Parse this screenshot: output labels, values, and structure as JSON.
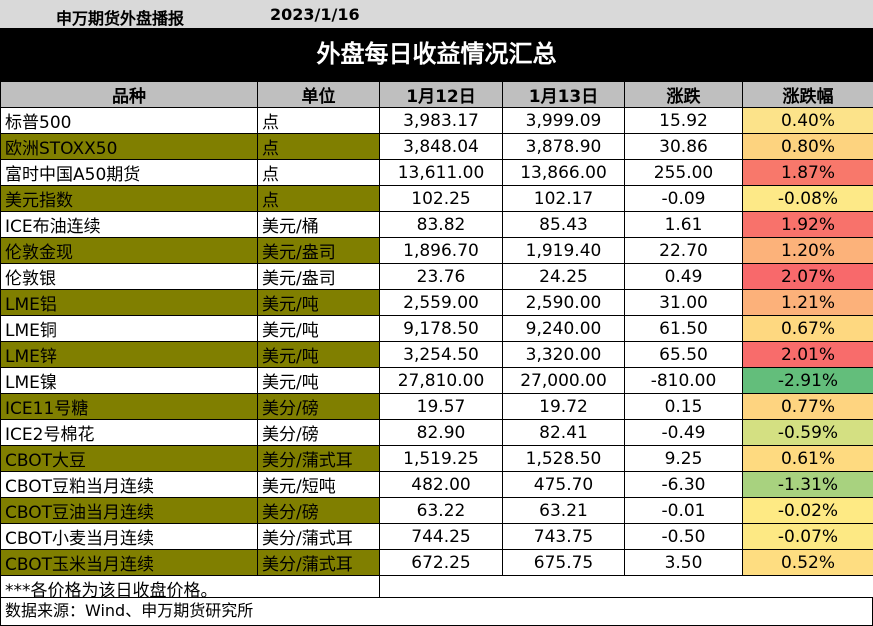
{
  "header": {
    "org": "申万期货外盘播报",
    "date": "2023/1/16",
    "title": "外盘每日收益情况汇总"
  },
  "columns": [
    "品种",
    "单位",
    "1月12日",
    "1月13日",
    "涨跌",
    "涨跌幅"
  ],
  "rows": [
    {
      "name": "标普500",
      "unit": "点",
      "d1": "3,983.17",
      "d2": "3,999.09",
      "chg": "15.92",
      "pct": "0.40%",
      "color": "#fce38a"
    },
    {
      "name": "欧洲STOXX50",
      "unit": "点",
      "d1": "3,848.04",
      "d2": "3,878.90",
      "chg": "30.86",
      "pct": "0.80%",
      "color": "#fdd37f"
    },
    {
      "name": "富时中国A50期货",
      "unit": "点",
      "d1": "13,611.00",
      "d2": "13,866.00",
      "chg": "255.00",
      "pct": "1.87%",
      "color": "#f8786b"
    },
    {
      "name": "美元指数",
      "unit": "点",
      "d1": "102.25",
      "d2": "102.17",
      "chg": "-0.09",
      "pct": "-0.08%",
      "color": "#fde987"
    },
    {
      "name": "ICE布油连续",
      "unit": "美元/桶",
      "d1": "83.82",
      "d2": "85.43",
      "chg": "1.61",
      "pct": "1.92%",
      "color": "#f8726b"
    },
    {
      "name": "伦敦金现",
      "unit": "美元/盎司",
      "d1": "1,896.70",
      "d2": "1,919.40",
      "chg": "22.70",
      "pct": "1.20%",
      "color": "#fcb27a"
    },
    {
      "name": "伦敦银",
      "unit": "美元/盎司",
      "d1": "23.76",
      "d2": "24.25",
      "chg": "0.49",
      "pct": "2.07%",
      "color": "#f8696b"
    },
    {
      "name": "LME铝",
      "unit": "美元/吨",
      "d1": "2,559.00",
      "d2": "2,590.00",
      "chg": "31.00",
      "pct": "1.21%",
      "color": "#fcb17a"
    },
    {
      "name": "LME铜",
      "unit": "美元/吨",
      "d1": "9,178.50",
      "d2": "9,240.00",
      "chg": "61.50",
      "pct": "0.67%",
      "color": "#fed880"
    },
    {
      "name": "LME锌",
      "unit": "美元/吨",
      "d1": "3,254.50",
      "d2": "3,320.00",
      "chg": "65.50",
      "pct": "2.01%",
      "color": "#f86c6b"
    },
    {
      "name": "LME镍",
      "unit": "美元/吨",
      "d1": "27,810.00",
      "d2": "27,000.00",
      "chg": "-810.00",
      "pct": "-2.91%",
      "color": "#63be7b"
    },
    {
      "name": "ICE11号糖",
      "unit": "美分/磅",
      "d1": "19.57",
      "d2": "19.72",
      "chg": "0.15",
      "pct": "0.77%",
      "color": "#fed480"
    },
    {
      "name": "ICE2号棉花",
      "unit": "美分/磅",
      "d1": "82.90",
      "d2": "82.41",
      "chg": "-0.49",
      "pct": "-0.59%",
      "color": "#d4e082"
    },
    {
      "name": "CBOT大豆",
      "unit": "美分/蒲式耳",
      "d1": "1,519.25",
      "d2": "1,528.50",
      "chg": "9.25",
      "pct": "0.61%",
      "color": "#feda80"
    },
    {
      "name": "CBOT豆粕当月连续",
      "unit": "美元/短吨",
      "d1": "482.00",
      "d2": "475.70",
      "chg": "-6.30",
      "pct": "-1.31%",
      "color": "#a8d27f"
    },
    {
      "name": "CBOT豆油当月连续",
      "unit": "美分/磅",
      "d1": "63.22",
      "d2": "63.21",
      "chg": "-0.01",
      "pct": "-0.02%",
      "color": "#feea84"
    },
    {
      "name": "CBOT小麦当月连续",
      "unit": "美分/蒲式耳",
      "d1": "744.25",
      "d2": "743.75",
      "chg": "-0.50",
      "pct": "-0.07%",
      "color": "#fde984"
    },
    {
      "name": "CBOT玉米当月连续",
      "unit": "美分/蒲式耳",
      "d1": "672.25",
      "d2": "675.75",
      "chg": "3.50",
      "pct": "0.52%",
      "color": "#fedd81"
    }
  ],
  "footer": {
    "note": "***各价格为该日收盘价格。",
    "source": "数据来源：Wind、申万期货研究所"
  }
}
